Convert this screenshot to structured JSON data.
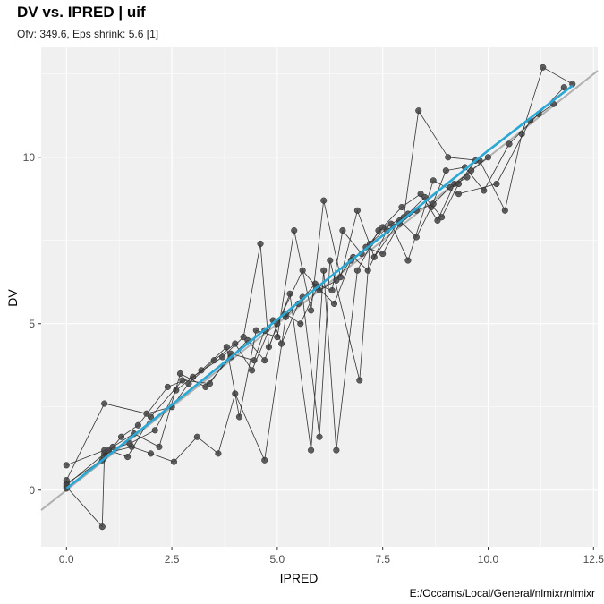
{
  "chart_data": {
    "type": "scatter",
    "title": "DV vs. IPRED | uif",
    "subtitle": "Ofv: 349.6, Eps shrink: 5.6 [1]",
    "caption": "E:/Occams/Local/General/nlmixr/nlmixr",
    "xlabel": "IPRED",
    "ylabel": "DV",
    "xlim": [
      -0.6,
      12.6
    ],
    "ylim": [
      -1.7,
      13.3
    ],
    "x_ticks": [
      0.0,
      2.5,
      5.0,
      7.5,
      10.0,
      12.5
    ],
    "x_tick_labels": [
      "0.0",
      "2.5",
      "5.0",
      "7.5",
      "10.0",
      "12.5"
    ],
    "y_ticks": [
      0,
      5,
      10
    ],
    "y_tick_labels": [
      "0",
      "5",
      "10"
    ],
    "grid": true,
    "identity_line": {
      "from": -0.6,
      "to": 12.6,
      "color": "#b0b0b0"
    },
    "smooth_line": {
      "color": "#29a8d6",
      "points": [
        [
          0,
          0.05
        ],
        [
          2,
          2.05
        ],
        [
          4,
          4.1
        ],
        [
          6,
          6.15
        ],
        [
          8,
          8.15
        ],
        [
          10,
          10.2
        ],
        [
          12,
          12.15
        ]
      ]
    },
    "point_color": "#444444",
    "line_color": "#333333",
    "series": [
      {
        "values": [
          [
            0,
            0.2
          ],
          [
            0.85,
            0.9
          ],
          [
            1.3,
            1.6
          ],
          [
            1.7,
            1.95
          ],
          [
            2.4,
            3.1
          ],
          [
            3.0,
            3.4
          ],
          [
            3.7,
            4.0
          ],
          [
            4.2,
            4.6
          ],
          [
            4.6,
            7.4
          ],
          [
            4.8,
            4.3
          ],
          [
            5.3,
            5.9
          ],
          [
            5.8,
            1.2
          ],
          [
            6.1,
            6.6
          ],
          [
            6.4,
            1.2
          ],
          [
            6.9,
            6.6
          ],
          [
            7.4,
            7.8
          ],
          [
            8.0,
            8.2
          ],
          [
            8.35,
            11.4
          ],
          [
            9.05,
            10.0
          ],
          [
            9.8,
            9.9
          ],
          [
            10.4,
            8.4
          ],
          [
            10.8,
            10.7
          ],
          [
            11.3,
            12.7
          ],
          [
            12.0,
            12.2
          ]
        ]
      },
      {
        "values": [
          [
            0,
            0.1
          ],
          [
            0.85,
            -1.1
          ],
          [
            0.9,
            1.1
          ],
          [
            1.55,
            1.3
          ],
          [
            2.0,
            1.1
          ],
          [
            2.55,
            0.85
          ],
          [
            3.1,
            1.6
          ],
          [
            3.6,
            1.1
          ],
          [
            4.0,
            2.9
          ],
          [
            4.7,
            0.9
          ],
          [
            5.2,
            5.2
          ],
          [
            5.6,
            5.8
          ],
          [
            6.0,
            1.6
          ],
          [
            6.25,
            6.9
          ],
          [
            6.95,
            3.3
          ],
          [
            7.2,
            7.4
          ],
          [
            7.7,
            8.0
          ],
          [
            8.1,
            6.9
          ],
          [
            8.7,
            9.3
          ],
          [
            9.3,
            8.9
          ],
          [
            10.2,
            9.2
          ],
          [
            11.0,
            11.1
          ],
          [
            11.55,
            11.6
          ]
        ]
      },
      {
        "values": [
          [
            0,
            0.75
          ],
          [
            0.9,
            1.2
          ],
          [
            1.5,
            1.4
          ],
          [
            2.1,
            1.8
          ],
          [
            2.6,
            3.0
          ],
          [
            3.2,
            3.6
          ],
          [
            3.8,
            4.3
          ],
          [
            4.1,
            2.2
          ],
          [
            4.5,
            4.8
          ],
          [
            5.0,
            4.6
          ],
          [
            5.4,
            7.8
          ],
          [
            5.8,
            5.4
          ],
          [
            6.1,
            8.7
          ],
          [
            6.5,
            6.4
          ],
          [
            6.9,
            8.4
          ],
          [
            7.3,
            7.0
          ],
          [
            7.9,
            8.1
          ],
          [
            8.3,
            7.6
          ],
          [
            8.65,
            8.5
          ],
          [
            9.0,
            9.6
          ],
          [
            9.45,
            9.7
          ],
          [
            9.9,
            9.0
          ],
          [
            10.5,
            10.4
          ],
          [
            11.2,
            11.3
          ],
          [
            11.8,
            12.1
          ]
        ]
      },
      {
        "values": [
          [
            0,
            0.3
          ],
          [
            0.9,
            2.6
          ],
          [
            1.9,
            2.3
          ],
          [
            2.5,
            2.5
          ],
          [
            2.9,
            3.2
          ],
          [
            3.5,
            3.9
          ],
          [
            4.0,
            4.4
          ],
          [
            4.4,
            3.6
          ],
          [
            4.9,
            5.1
          ],
          [
            5.1,
            4.4
          ],
          [
            5.5,
            5.6
          ],
          [
            5.9,
            6.2
          ],
          [
            6.3,
            6.0
          ],
          [
            6.55,
            7.8
          ],
          [
            7.0,
            7.1
          ],
          [
            7.5,
            7.9
          ],
          [
            7.95,
            8.5
          ],
          [
            8.4,
            8.9
          ],
          [
            8.8,
            8.1
          ],
          [
            9.2,
            9.2
          ],
          [
            9.6,
            9.6
          ],
          [
            10.0,
            10.0
          ]
        ]
      },
      {
        "values": [
          [
            0,
            0.05
          ],
          [
            0.9,
            1.0
          ],
          [
            1.1,
            1.3
          ],
          [
            1.6,
            1.7
          ],
          [
            2.2,
            1.3
          ],
          [
            2.7,
            3.5
          ],
          [
            3.3,
            3.1
          ],
          [
            3.9,
            4.0
          ],
          [
            4.3,
            4.5
          ],
          [
            4.7,
            3.9
          ],
          [
            5.0,
            5.0
          ],
          [
            5.6,
            6.6
          ],
          [
            6.0,
            6.0
          ],
          [
            6.4,
            6.3
          ],
          [
            6.8,
            7.0
          ],
          [
            7.15,
            6.6
          ],
          [
            7.6,
            7.8
          ],
          [
            8.1,
            8.3
          ],
          [
            8.5,
            8.8
          ],
          [
            8.9,
            8.2
          ],
          [
            9.3,
            9.2
          ],
          [
            9.7,
            9.9
          ]
        ]
      },
      {
        "values": [
          [
            0,
            0.15
          ],
          [
            1.0,
            1.2
          ],
          [
            1.45,
            1.0
          ],
          [
            2.0,
            2.2
          ],
          [
            2.75,
            3.3
          ],
          [
            3.4,
            3.2
          ],
          [
            3.9,
            4.1
          ],
          [
            4.45,
            3.9
          ],
          [
            4.7,
            4.8
          ],
          [
            5.2,
            5.3
          ],
          [
            5.55,
            5.0
          ],
          [
            5.95,
            6.1
          ],
          [
            6.35,
            5.6
          ],
          [
            6.75,
            6.9
          ],
          [
            7.1,
            7.3
          ],
          [
            7.5,
            7.1
          ],
          [
            7.9,
            8.0
          ],
          [
            8.3,
            8.4
          ],
          [
            8.7,
            8.6
          ],
          [
            9.1,
            9.1
          ],
          [
            9.5,
            9.4
          ]
        ]
      }
    ]
  }
}
